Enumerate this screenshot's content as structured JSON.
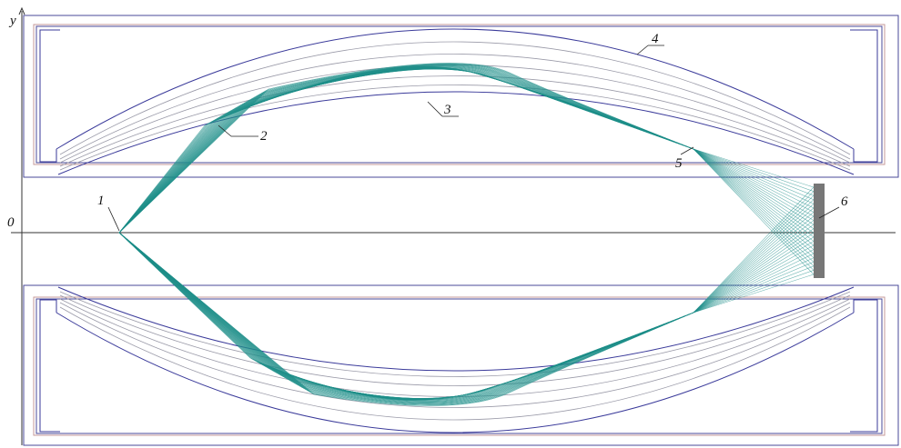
{
  "labels": {
    "origin": "0",
    "y_axis": "y",
    "n1": "1",
    "n2": "2",
    "n3": "3",
    "n4": "4",
    "n5": "5",
    "n6": "6"
  },
  "colors": {
    "rays": "#1f8f8a",
    "detector": "#777777",
    "electrode_outline": "#3a3a9a",
    "equipotential": "#9a9aa8",
    "frame_inner": "#c49a9a"
  }
}
